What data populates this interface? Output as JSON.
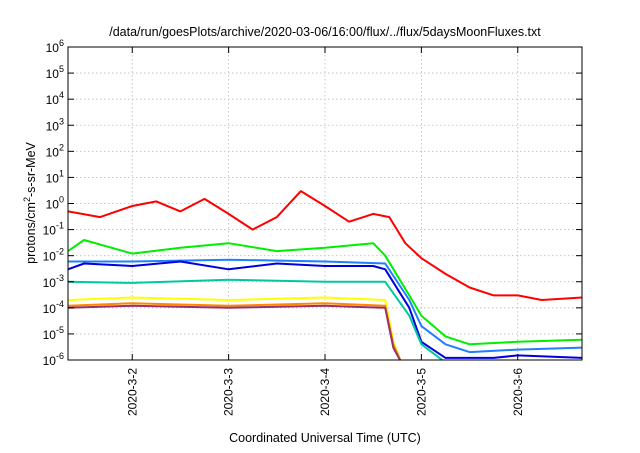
{
  "chart_data": {
    "type": "line",
    "title": "/data/run/goesPlots/archive/2020-03-06/16:00/flux/../flux/5daysMoonFluxes.txt",
    "xlabel": "Coordinated Universal Time (UTC)",
    "ylabel": "protons/cm2-s-sr-MeV",
    "ylabel_parts": {
      "base": "protons/cm",
      "sup": "2",
      "rest": "-s-sr-MeV"
    },
    "y_scale": "log",
    "ylim": [
      1e-06,
      1000000.0
    ],
    "y_tick_exponents": [
      -6,
      -5,
      -4,
      -3,
      -2,
      -1,
      0,
      1,
      2,
      3,
      4,
      5,
      6
    ],
    "y_tick_base": "10",
    "xlim": [
      "2020-03-01T08:00",
      "2020-03-06T16:00"
    ],
    "x_ticks": [
      "2020-3-2",
      "2020-3-3",
      "2020-3-4",
      "2020-3-5",
      "2020-3-6"
    ],
    "x_tick_values": [
      "2020-03-02T00:00",
      "2020-03-03T00:00",
      "2020-03-04T00:00",
      "2020-03-05T00:00",
      "2020-03-06T00:00"
    ],
    "grid": true,
    "legend": "none",
    "series": [
      {
        "color": "#ff0000",
        "x": [
          "2020-03-01T08:00",
          "2020-03-01T16:00",
          "2020-03-02T00:00",
          "2020-03-02T06:00",
          "2020-03-02T12:00",
          "2020-03-02T18:00",
          "2020-03-03T00:00",
          "2020-03-03T06:00",
          "2020-03-03T12:00",
          "2020-03-03T18:00",
          "2020-03-04T00:00",
          "2020-03-04T06:00",
          "2020-03-04T12:00",
          "2020-03-04T16:00",
          "2020-03-04T20:00",
          "2020-03-05T00:00",
          "2020-03-05T06:00",
          "2020-03-05T12:00",
          "2020-03-05T18:00",
          "2020-03-06T00:00",
          "2020-03-06T06:00",
          "2020-03-06T16:00"
        ],
        "y": [
          0.5,
          0.3,
          0.8,
          1.2,
          0.5,
          1.5,
          0.4,
          0.1,
          0.3,
          3.0,
          0.8,
          0.2,
          0.4,
          0.3,
          0.03,
          0.008,
          0.002,
          0.0006,
          0.0003,
          0.0003,
          0.0002,
          0.00025
        ]
      },
      {
        "color": "#00ee00",
        "x": [
          "2020-03-01T08:00",
          "2020-03-01T12:00",
          "2020-03-02T00:00",
          "2020-03-02T12:00",
          "2020-03-03T00:00",
          "2020-03-03T12:00",
          "2020-03-04T00:00",
          "2020-03-04T12:00",
          "2020-03-04T15:00",
          "2020-03-04T21:00",
          "2020-03-05T00:00",
          "2020-03-05T06:00",
          "2020-03-05T12:00",
          "2020-03-06T00:00",
          "2020-03-06T16:00"
        ],
        "y": [
          0.015,
          0.04,
          0.012,
          0.02,
          0.03,
          0.015,
          0.02,
          0.03,
          0.01,
          0.0003,
          5e-05,
          8e-06,
          4e-06,
          5e-06,
          6e-06
        ]
      },
      {
        "color": "#1e7fff",
        "x": [
          "2020-03-01T08:00",
          "2020-03-02T00:00",
          "2020-03-03T00:00",
          "2020-03-04T00:00",
          "2020-03-04T15:00",
          "2020-03-04T21:00",
          "2020-03-05T00:00",
          "2020-03-05T06:00",
          "2020-03-05T12:00",
          "2020-03-06T00:00",
          "2020-03-06T16:00"
        ],
        "y": [
          0.006,
          0.006,
          0.007,
          0.006,
          0.005,
          0.0002,
          2e-05,
          4e-06,
          2e-06,
          2.5e-06,
          3e-06
        ]
      },
      {
        "color": "#0000dd",
        "x": [
          "2020-03-01T08:00",
          "2020-03-01T12:00",
          "2020-03-02T00:00",
          "2020-03-02T12:00",
          "2020-03-03T00:00",
          "2020-03-03T12:00",
          "2020-03-04T00:00",
          "2020-03-04T12:00",
          "2020-03-04T15:00",
          "2020-03-04T21:00",
          "2020-03-05T00:00",
          "2020-03-05T06:00",
          "2020-03-05T18:00",
          "2020-03-06T00:00",
          "2020-03-06T16:00"
        ],
        "y": [
          0.003,
          0.005,
          0.004,
          0.006,
          0.003,
          0.005,
          0.004,
          0.004,
          0.003,
          0.0001,
          5e-06,
          1.2e-06,
          1.2e-06,
          1.5e-06,
          1.2e-06
        ]
      },
      {
        "color": "#00c8a0",
        "x": [
          "2020-03-01T08:00",
          "2020-03-02T00:00",
          "2020-03-03T00:00",
          "2020-03-04T00:00",
          "2020-03-04T15:00",
          "2020-03-04T21:00",
          "2020-03-05T00:00",
          "2020-03-05T06:00"
        ],
        "y": [
          0.001,
          0.0009,
          0.0012,
          0.001,
          0.001,
          5e-05,
          4e-06,
          8e-07
        ]
      },
      {
        "color": "#ffff00",
        "x": [
          "2020-03-01T08:00",
          "2020-03-02T00:00",
          "2020-03-03T00:00",
          "2020-03-04T00:00",
          "2020-03-04T15:00",
          "2020-03-04T17:00",
          "2020-03-04T19:00"
        ],
        "y": [
          0.0002,
          0.00025,
          0.0002,
          0.00025,
          0.0002,
          5e-06,
          8e-07
        ]
      },
      {
        "color": "#ff8800",
        "x": [
          "2020-03-01T08:00",
          "2020-03-02T00:00",
          "2020-03-03T00:00",
          "2020-03-04T00:00",
          "2020-03-04T15:00",
          "2020-03-04T17:00",
          "2020-03-04T19:00"
        ],
        "y": [
          0.00012,
          0.00015,
          0.00012,
          0.00015,
          0.00012,
          4e-06,
          8e-07
        ]
      },
      {
        "color": "#993366",
        "x": [
          "2020-03-01T08:00",
          "2020-03-02T00:00",
          "2020-03-03T00:00",
          "2020-03-04T00:00",
          "2020-03-04T15:00",
          "2020-03-04T17:00",
          "2020-03-04T19:00"
        ],
        "y": [
          0.0001,
          0.00012,
          0.0001,
          0.00012,
          0.0001,
          3e-06,
          8e-07
        ]
      }
    ]
  }
}
